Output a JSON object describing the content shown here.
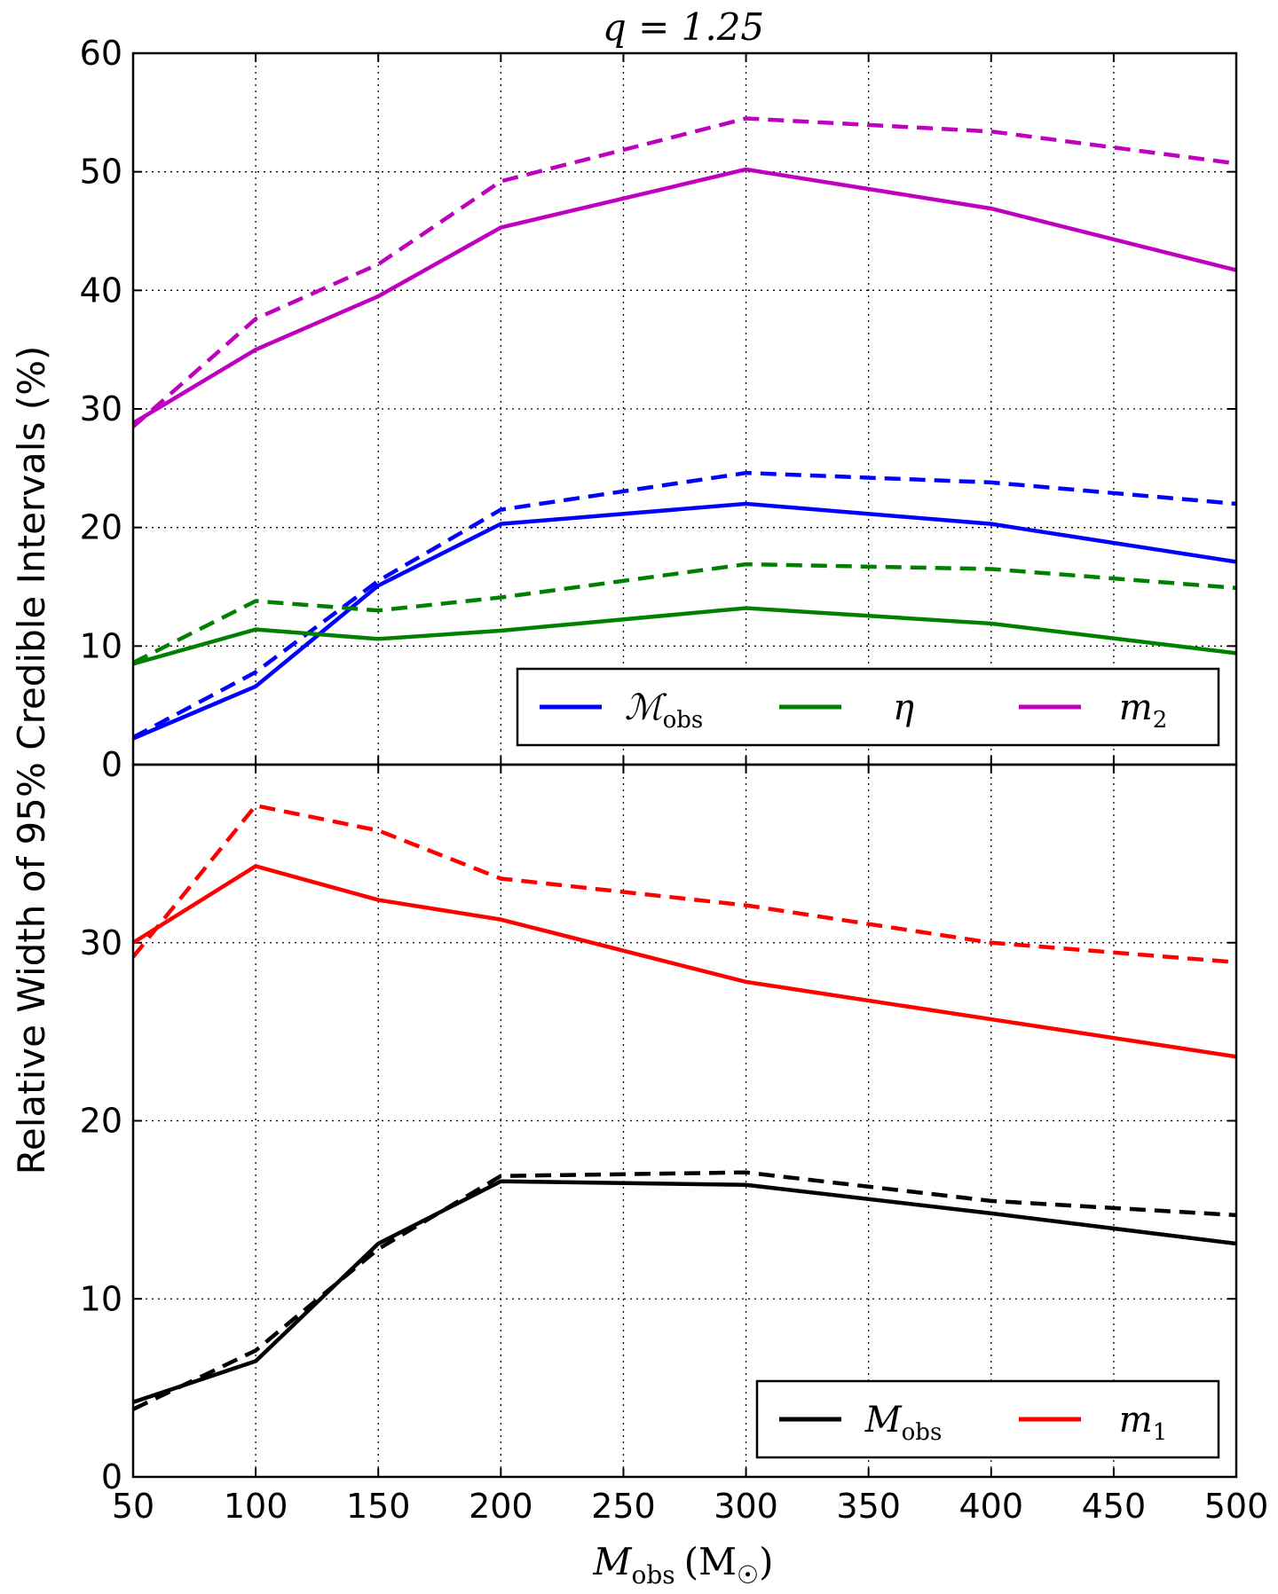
{
  "chart_data": {
    "type": "line",
    "title": "q = 1.25",
    "ylabel": "Relative Width of 95% Credible Intervals (%)",
    "xlabel": "M_obs (M_☉)",
    "xlabel_parts": {
      "main": "M",
      "sub": "obs",
      "unit": "(M",
      "unit_sub": "☉",
      "close": ")"
    },
    "x": [
      50,
      100,
      150,
      200,
      300,
      400,
      500
    ],
    "xlim": [
      50,
      500
    ],
    "xticks": [
      "50",
      "100",
      "150",
      "200",
      "250",
      "300",
      "350",
      "400",
      "450",
      "500"
    ],
    "grid": true,
    "panels": [
      {
        "name": "top",
        "ylim": [
          0,
          60
        ],
        "yticks": [
          "0",
          "10",
          "20",
          "30",
          "40",
          "50",
          "60"
        ],
        "legend_position": "lower-right",
        "legend": [
          {
            "label": "ℳ",
            "sub": "obs",
            "color": "#0000ff"
          },
          {
            "label": "η",
            "sub": "",
            "color": "#008000"
          },
          {
            "label": "m",
            "sub": "2",
            "color": "#bf00bf"
          }
        ],
        "series": [
          {
            "name": "Mchirp_obs solid",
            "color": "#0000ff",
            "style": "solid",
            "values": [
              2.2,
              6.6,
              15.1,
              20.3,
              22.0,
              20.3,
              17.1
            ]
          },
          {
            "name": "Mchirp_obs dashed",
            "color": "#0000ff",
            "style": "dashed",
            "values": [
              2.3,
              7.8,
              15.5,
              21.5,
              24.6,
              23.8,
              22.0
            ]
          },
          {
            "name": "eta solid",
            "color": "#008000",
            "style": "solid",
            "values": [
              8.5,
              11.4,
              10.6,
              11.3,
              13.2,
              11.9,
              9.4
            ]
          },
          {
            "name": "eta dashed",
            "color": "#008000",
            "style": "dashed",
            "values": [
              8.6,
              13.8,
              13.0,
              14.1,
              16.9,
              16.5,
              14.9
            ]
          },
          {
            "name": "m2 solid",
            "color": "#bf00bf",
            "style": "solid",
            "values": [
              28.8,
              35.0,
              39.5,
              45.3,
              50.2,
              46.9,
              41.7
            ]
          },
          {
            "name": "m2 dashed",
            "color": "#bf00bf",
            "style": "dashed",
            "values": [
              28.5,
              37.6,
              42.2,
              49.2,
              54.5,
              53.4,
              50.7
            ]
          }
        ]
      },
      {
        "name": "bottom",
        "ylim": [
          0,
          40
        ],
        "yticks": [
          "0",
          "10",
          "20",
          "30"
        ],
        "legend_position": "lower-right",
        "legend": [
          {
            "label": "M",
            "sub": "obs",
            "color": "#000000"
          },
          {
            "label": "m",
            "sub": "1",
            "color": "#ff0000"
          }
        ],
        "series": [
          {
            "name": "M_obs solid",
            "color": "#000000",
            "style": "solid",
            "values": [
              4.2,
              6.5,
              13.1,
              16.6,
              16.4,
              14.8,
              13.1
            ]
          },
          {
            "name": "M_obs dashed",
            "color": "#000000",
            "style": "dashed",
            "values": [
              3.8,
              7.1,
              12.8,
              16.9,
              17.1,
              15.5,
              14.7
            ]
          },
          {
            "name": "m1 solid",
            "color": "#ff0000",
            "style": "solid",
            "values": [
              30.0,
              34.3,
              32.4,
              31.3,
              27.8,
              25.7,
              23.6
            ]
          },
          {
            "name": "m1 dashed",
            "color": "#ff0000",
            "style": "dashed",
            "values": [
              29.2,
              37.7,
              36.3,
              33.6,
              32.1,
              30.0,
              28.9
            ]
          }
        ]
      }
    ]
  }
}
